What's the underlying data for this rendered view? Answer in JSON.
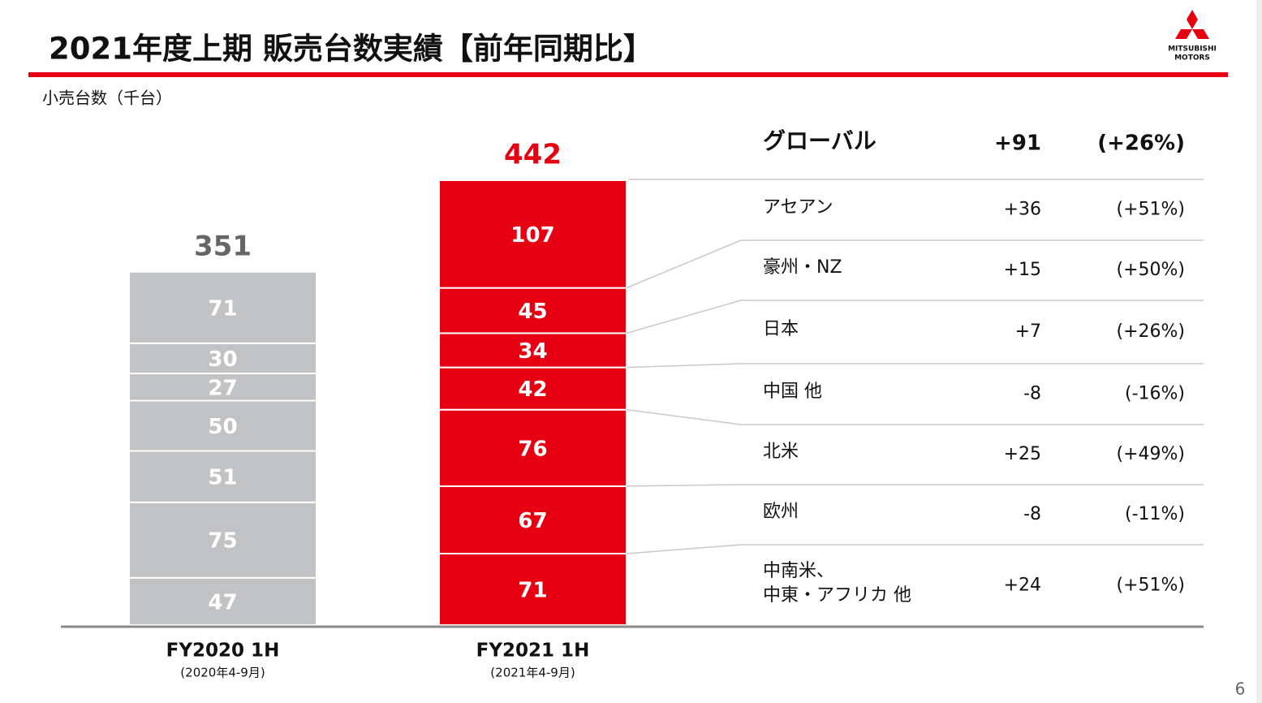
{
  "title": "2021年度上期 販売台数実績【前年同期比】",
  "logo": [
    "MITSUBISHI",
    "MOTORS"
  ],
  "page_number": "6",
  "chart_data": {
    "type": "bar",
    "stacked": true,
    "subtitle": "小売台数（千台）",
    "categories": [
      "FY2020 1H",
      "FY2021 1H"
    ],
    "category_periods": [
      "(2020年4-9月)",
      "(2021年4-9月)"
    ],
    "category_colors": [
      "#c0c2c4",
      "#e60012"
    ],
    "total_colors": [
      "#666666",
      "#e60012"
    ],
    "totals": [
      351,
      442
    ],
    "global": {
      "name": "グローバル",
      "change": "+91",
      "change_pct": "(+26%)"
    },
    "series": [
      {
        "name": "アセアン",
        "values": [
          71,
          107
        ],
        "change": "+36",
        "change_pct": "(+51%)"
      },
      {
        "name": "豪州・NZ",
        "values": [
          30,
          45
        ],
        "change": "+15",
        "change_pct": "(+50%)"
      },
      {
        "name": "日本",
        "values": [
          27,
          34
        ],
        "change": "+7",
        "change_pct": "(+26%)"
      },
      {
        "name": "中国 他",
        "values": [
          50,
          42
        ],
        "change": "-8",
        "change_pct": "(-16%)"
      },
      {
        "name": "北米",
        "values": [
          51,
          76
        ],
        "change": "+25",
        "change_pct": "(+49%)"
      },
      {
        "name": "欧州",
        "values": [
          75,
          67
        ],
        "change": "-8",
        "change_pct": "(-11%)"
      },
      {
        "name": "中南米、\n中東・アフリカ 他",
        "values": [
          47,
          71
        ],
        "change": "+24",
        "change_pct": "(+51%)"
      }
    ]
  }
}
